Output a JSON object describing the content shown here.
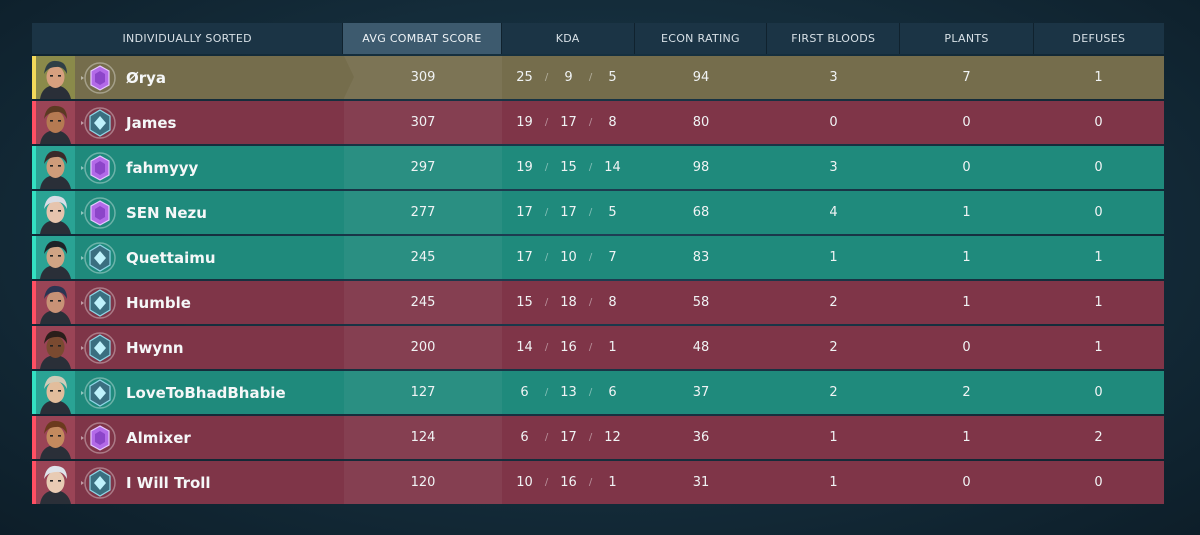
{
  "headers": {
    "name": "INDIVIDUALLY SORTED",
    "acs": "AVG COMBAT SCORE",
    "kda": "KDA",
    "econ": "ECON RATING",
    "first_bloods": "FIRST BLOODS",
    "plants": "PLANTS",
    "defuses": "DEFUSES"
  },
  "kda_separator": "/",
  "colors": {
    "red_team": "#7f3548",
    "teal_team": "#1f8a7c",
    "self_row": "#756d4c",
    "active_header": "#3d5a6e"
  },
  "players": [
    {
      "name": "Ørya",
      "team": "me",
      "acs": "309",
      "k": "25",
      "d": "9",
      "a": "5",
      "econ": "94",
      "fb": "3",
      "plants": "7",
      "defuses": "1",
      "rank_icon": "purple-rank-icon",
      "agent_icon": "agent-portrait-icon"
    },
    {
      "name": "James",
      "team": "red",
      "acs": "307",
      "k": "19",
      "d": "17",
      "a": "8",
      "econ": "80",
      "fb": "0",
      "plants": "0",
      "defuses": "0",
      "rank_icon": "blue-rank-icon",
      "agent_icon": "agent-portrait-icon"
    },
    {
      "name": "fahmyyy",
      "team": "teal",
      "acs": "297",
      "k": "19",
      "d": "15",
      "a": "14",
      "econ": "98",
      "fb": "3",
      "plants": "0",
      "defuses": "0",
      "rank_icon": "purple-rank-icon",
      "agent_icon": "agent-portrait-icon"
    },
    {
      "name": "SEN Nezu",
      "team": "teal",
      "acs": "277",
      "k": "17",
      "d": "17",
      "a": "5",
      "econ": "68",
      "fb": "4",
      "plants": "1",
      "defuses": "0",
      "rank_icon": "purple-rank-icon",
      "agent_icon": "agent-portrait-icon"
    },
    {
      "name": "Quettaimu",
      "team": "teal",
      "acs": "245",
      "k": "17",
      "d": "10",
      "a": "7",
      "econ": "83",
      "fb": "1",
      "plants": "1",
      "defuses": "1",
      "rank_icon": "blue-rank-icon",
      "agent_icon": "agent-portrait-icon"
    },
    {
      "name": "Humble",
      "team": "red",
      "acs": "245",
      "k": "15",
      "d": "18",
      "a": "8",
      "econ": "58",
      "fb": "2",
      "plants": "1",
      "defuses": "1",
      "rank_icon": "blue-rank-icon",
      "agent_icon": "agent-portrait-icon"
    },
    {
      "name": "Hwynn",
      "team": "red",
      "acs": "200",
      "k": "14",
      "d": "16",
      "a": "1",
      "econ": "48",
      "fb": "2",
      "plants": "0",
      "defuses": "1",
      "rank_icon": "blue-rank-icon",
      "agent_icon": "agent-portrait-icon"
    },
    {
      "name": "LoveToBhadBhabie",
      "team": "teal",
      "acs": "127",
      "k": "6",
      "d": "13",
      "a": "6",
      "econ": "37",
      "fb": "2",
      "plants": "2",
      "defuses": "0",
      "rank_icon": "blue-rank-icon",
      "agent_icon": "agent-portrait-icon"
    },
    {
      "name": "Almixer",
      "team": "red",
      "acs": "124",
      "k": "6",
      "d": "17",
      "a": "12",
      "econ": "36",
      "fb": "1",
      "plants": "1",
      "defuses": "2",
      "rank_icon": "purple-rank-icon",
      "agent_icon": "agent-portrait-icon"
    },
    {
      "name": "I Will Troll",
      "team": "red",
      "acs": "120",
      "k": "10",
      "d": "16",
      "a": "1",
      "econ": "31",
      "fb": "1",
      "plants": "0",
      "defuses": "0",
      "rank_icon": "blue-rank-icon",
      "agent_icon": "agent-portrait-icon"
    }
  ]
}
